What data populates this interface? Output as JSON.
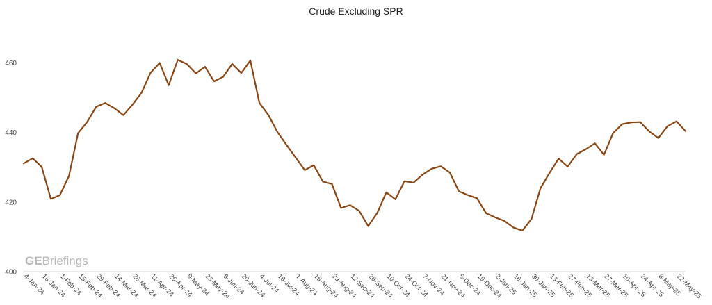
{
  "chart_data": {
    "type": "line",
    "title": "Crude Excluding SPR",
    "xlabel": "",
    "ylabel": "",
    "ylim": [
      400,
      470
    ],
    "yticks": [
      400,
      420,
      440,
      460
    ],
    "grid": false,
    "legend": "none",
    "watermark": {
      "bold": "GE",
      "rest": "Briefings"
    },
    "line_color": "#8B4513",
    "x_tick_labels": [
      "4-Jan-24",
      "18-Jan-24",
      "1-Feb-24",
      "15-Feb-24",
      "29-Feb-24",
      "14-Mar-24",
      "28-Mar-24",
      "11-Apr-24",
      "25-Apr-24",
      "9-May-24",
      "23-May-24",
      "6-Jun-24",
      "20-Jun-24",
      "4-Jul-24",
      "18-Jul-24",
      "1-Aug-24",
      "15-Aug-24",
      "29-Aug-24",
      "12-Sep-24",
      "26-Sep-24",
      "10-Oct-24",
      "24-Oct-24",
      "7-Nov-24",
      "21-Nov-24",
      "5-Dec-24",
      "19-Dec-24",
      "2-Jan-25",
      "16-Jan-25",
      "30-Jan-25",
      "13-Feb-25",
      "27-Feb-25",
      "13-Mar-25",
      "27-Mar-25",
      "10-Apr-25",
      "24-Apr-25",
      "8-May-25",
      "22-May-25"
    ],
    "series": [
      {
        "values": [
          431.1,
          432.6,
          430.1,
          420.9,
          422.0,
          427.5,
          439.8,
          443.0,
          447.4,
          448.5,
          447.0,
          445.0,
          448.0,
          451.4,
          457.2,
          460.0,
          453.6,
          460.9,
          459.7,
          457.0,
          458.9,
          454.7,
          456.0,
          459.7,
          457.1,
          460.7,
          448.5,
          445.0,
          440.1,
          436.4,
          432.8,
          429.2,
          430.6,
          425.9,
          425.2,
          418.3,
          419.1,
          417.5,
          413.1,
          416.9,
          422.8,
          420.8,
          426.0,
          425.6,
          427.9,
          429.6,
          430.3,
          428.5,
          423.1,
          422.0,
          421.1,
          416.8,
          415.6,
          414.6,
          412.7,
          411.8,
          415.1,
          424.0,
          428.4,
          432.5,
          430.2,
          433.8,
          435.2,
          436.9,
          433.6,
          439.8,
          442.4,
          442.9,
          443.0,
          440.3,
          438.4,
          441.8,
          443.2,
          440.4
        ]
      }
    ]
  }
}
